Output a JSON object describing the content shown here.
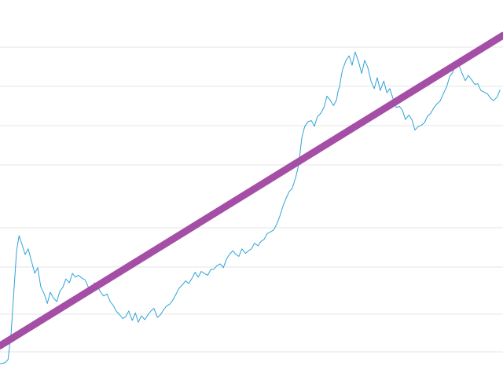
{
  "chart_data": {
    "type": "line",
    "title": "",
    "xlabel": "",
    "ylabel": "",
    "grid": true,
    "legend": "none",
    "xlim": [
      0,
      100
    ],
    "ylim": [
      0,
      100
    ],
    "gridlines_y": [
      6.67,
      16.67,
      29.17,
      39.58,
      56.25,
      66.67,
      77.08,
      87.5
    ],
    "series": [
      {
        "color": "#2fa3d8",
        "style": "thin",
        "x": [
          0,
          1,
          1.6,
          2.2,
          2.8,
          3.3,
          3.8,
          4.4,
          5,
          5.6,
          6.2,
          6.9,
          7.5,
          8.1,
          8.8,
          9.4,
          10,
          10.6,
          11.3,
          11.9,
          12.5,
          13.1,
          13.8,
          14.4,
          15,
          15.6,
          16.3,
          16.9,
          17.5,
          18.1,
          18.8,
          19.4,
          20,
          20.6,
          21.3,
          21.9,
          22.5,
          23.1,
          23.8,
          24.4,
          25,
          25.6,
          26.3,
          26.9,
          27.5,
          28.1,
          28.8,
          29.4,
          30,
          30.6,
          31.3,
          31.9,
          32.5,
          33.1,
          33.8,
          34.4,
          35,
          35.6,
          36.3,
          36.9,
          37.5,
          38.1,
          38.8,
          39.4,
          40,
          40.6,
          41.3,
          41.9,
          42.5,
          43.1,
          43.8,
          44.4,
          45,
          45.6,
          46.3,
          46.9,
          47.5,
          48.1,
          48.8,
          49.4,
          50,
          50.6,
          51.3,
          51.9,
          52.5,
          53.1,
          53.8,
          54.4,
          55,
          55.6,
          56.3,
          56.9,
          57.5,
          58.1,
          58.8,
          59.4,
          60,
          60.6,
          61.3,
          61.9,
          62.5,
          63.1,
          63.8,
          64.4,
          65,
          65.6,
          66.3,
          66.9,
          67.2,
          67.5,
          67.8,
          68.1,
          68.8,
          69.4,
          70,
          70.6,
          71.3,
          71.9,
          72.5,
          73.1,
          73.8,
          74.4,
          75,
          75.6,
          76.3,
          76.9,
          77.5,
          78.1,
          78.8,
          79.4,
          80,
          80.6,
          81.3,
          81.9,
          82.5,
          83.1,
          83.8,
          84.4,
          85,
          85.6,
          86.3,
          86.9,
          87.5,
          88.1,
          88.8,
          89.4,
          90,
          90.6,
          91.3,
          91.9,
          92.5,
          93.1,
          93.8,
          94.4,
          95,
          95.6,
          96.3,
          96.9,
          97.5,
          98.1,
          98.8,
          99.4
        ],
        "y": [
          3.5,
          3.8,
          4.6,
          11.5,
          23.5,
          33.5,
          37.5,
          35,
          32.5,
          34,
          31,
          27.5,
          29,
          24,
          22,
          19.5,
          22.5,
          21,
          20,
          22.8,
          23.8,
          26,
          25,
          27.5,
          26.5,
          27,
          26.2,
          25.8,
          24,
          23.5,
          25,
          24,
          22.5,
          21.5,
          22,
          20,
          19,
          17.5,
          16.5,
          15.5,
          16,
          17.5,
          15,
          17,
          14.5,
          16.2,
          15.2,
          16.5,
          17.5,
          18.2,
          15.8,
          16.5,
          17.8,
          18.8,
          19.4,
          20.5,
          22,
          23.5,
          24.5,
          25.5,
          24.8,
          26,
          27.8,
          26.5,
          28,
          27.5,
          27,
          28.5,
          28.6,
          29.5,
          30,
          29,
          31.2,
          32.5,
          33.5,
          32.5,
          32,
          34,
          32.8,
          33.5,
          34,
          35.5,
          34.8,
          36,
          36.5,
          38,
          38.5,
          39,
          40.5,
          42.5,
          45.5,
          47.5,
          49.2,
          50,
          53,
          56.5,
          63.5,
          66.5,
          67.8,
          68,
          66.5,
          69,
          70,
          71.5,
          74.5,
          73.5,
          72,
          73.5,
          75.8,
          77,
          79.4,
          81.5,
          84,
          85.2,
          82.7,
          86.2,
          83.6,
          80.5,
          84,
          82.2,
          78.3,
          76.5,
          79.4,
          76,
          78.5,
          75.4,
          76.5,
          74,
          71.5,
          71.8,
          70.8,
          68.3,
          69.5,
          68.2,
          65.5,
          66.4,
          66.8,
          67.5,
          69.2,
          69.9,
          71.5,
          72.5,
          73.2,
          75,
          77,
          79.7,
          80.8,
          83.3,
          82.5,
          80.4,
          78.6,
          80,
          78.8,
          77.6,
          77.8,
          76,
          75.5,
          75.1,
          74,
          73.3,
          74.2,
          76.1
        ]
      },
      {
        "color": "#a54ea5",
        "style": "thick",
        "x": [
          0,
          100
        ],
        "y": [
          8.3,
          90.6
        ]
      }
    ]
  }
}
